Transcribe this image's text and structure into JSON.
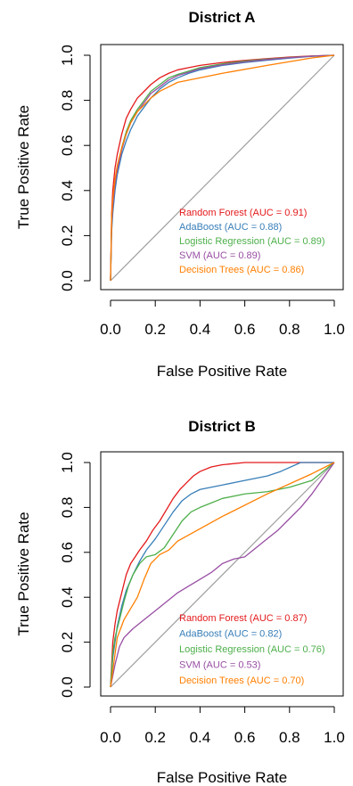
{
  "chart_data": [
    {
      "type": "line",
      "title": "District A",
      "xlabel": "False Positive Rate",
      "ylabel": "True Positive Rate",
      "xlim": [
        0,
        1
      ],
      "ylim": [
        0,
        1
      ],
      "x_ticks": [
        "0.0",
        "0.2",
        "0.4",
        "0.6",
        "0.8",
        "1.0"
      ],
      "y_ticks": [
        "0.0",
        "0.2",
        "0.4",
        "0.6",
        "0.8",
        "1.0"
      ],
      "diagonal_reference": true,
      "legend_position": "bottom-right",
      "series": [
        {
          "name": "Random Forest (AUC = 0.91)",
          "color": "#e41a1c",
          "x": [
            0,
            0.005,
            0.01,
            0.02,
            0.03,
            0.05,
            0.07,
            0.09,
            0.12,
            0.15,
            0.18,
            0.22,
            0.26,
            0.3,
            0.35,
            0.4,
            0.5,
            0.6,
            0.7,
            0.8,
            0.9,
            1.0
          ],
          "y": [
            0,
            0.3,
            0.4,
            0.5,
            0.56,
            0.65,
            0.72,
            0.76,
            0.81,
            0.84,
            0.87,
            0.9,
            0.92,
            0.935,
            0.945,
            0.955,
            0.968,
            0.977,
            0.985,
            0.992,
            0.997,
            1.0
          ]
        },
        {
          "name": "AdaBoost (AUC = 0.88)",
          "color": "#377eb8",
          "x": [
            0,
            0.005,
            0.01,
            0.02,
            0.03,
            0.05,
            0.07,
            0.09,
            0.12,
            0.15,
            0.18,
            0.22,
            0.26,
            0.3,
            0.35,
            0.4,
            0.5,
            0.6,
            0.7,
            0.8,
            0.9,
            1.0
          ],
          "y": [
            0,
            0.22,
            0.3,
            0.4,
            0.47,
            0.56,
            0.62,
            0.67,
            0.73,
            0.77,
            0.81,
            0.85,
            0.88,
            0.9,
            0.92,
            0.935,
            0.955,
            0.968,
            0.978,
            0.987,
            0.995,
            1.0
          ]
        },
        {
          "name": "Logistic Regression (AUC = 0.89)",
          "color": "#4daf4a",
          "x": [
            0,
            0.005,
            0.01,
            0.02,
            0.03,
            0.05,
            0.07,
            0.09,
            0.12,
            0.15,
            0.18,
            0.22,
            0.26,
            0.3,
            0.35,
            0.4,
            0.5,
            0.6,
            0.7,
            0.8,
            0.9,
            1.0
          ],
          "y": [
            0,
            0.26,
            0.34,
            0.44,
            0.5,
            0.59,
            0.66,
            0.71,
            0.76,
            0.8,
            0.84,
            0.87,
            0.9,
            0.915,
            0.93,
            0.945,
            0.962,
            0.974,
            0.983,
            0.99,
            0.996,
            1.0
          ]
        },
        {
          "name": "SVM (AUC = 0.89)",
          "color": "#984ea3",
          "x": [
            0,
            0.005,
            0.01,
            0.02,
            0.03,
            0.05,
            0.07,
            0.09,
            0.12,
            0.15,
            0.18,
            0.22,
            0.26,
            0.3,
            0.35,
            0.4,
            0.5,
            0.6,
            0.7,
            0.8,
            0.9,
            1.0
          ],
          "y": [
            0,
            0.25,
            0.33,
            0.43,
            0.49,
            0.58,
            0.65,
            0.7,
            0.75,
            0.79,
            0.83,
            0.86,
            0.89,
            0.91,
            0.925,
            0.94,
            0.958,
            0.971,
            0.981,
            0.989,
            0.996,
            1.0
          ]
        },
        {
          "name": "Decision Trees (AUC = 0.86)",
          "color": "#ff7f00",
          "x": [
            0,
            0.005,
            0.01,
            0.02,
            0.03,
            0.05,
            0.07,
            0.09,
            0.12,
            0.15,
            0.18,
            0.22,
            0.26,
            0.3,
            0.5,
            0.7,
            0.9,
            1.0
          ],
          "y": [
            0,
            0.28,
            0.36,
            0.45,
            0.51,
            0.59,
            0.65,
            0.7,
            0.75,
            0.78,
            0.81,
            0.84,
            0.86,
            0.88,
            0.92,
            0.955,
            0.988,
            1.0
          ]
        }
      ]
    },
    {
      "type": "line",
      "title": "District B",
      "xlabel": "False Positive Rate",
      "ylabel": "True Positive Rate",
      "xlim": [
        0,
        1
      ],
      "ylim": [
        0,
        1
      ],
      "x_ticks": [
        "0.0",
        "0.2",
        "0.4",
        "0.6",
        "0.8",
        "1.0"
      ],
      "y_ticks": [
        "0.0",
        "0.2",
        "0.4",
        "0.6",
        "0.8",
        "1.0"
      ],
      "diagonal_reference": true,
      "legend_position": "bottom-right",
      "series": [
        {
          "name": "Random Forest (AUC = 0.87)",
          "color": "#e41a1c",
          "x": [
            0,
            0.01,
            0.02,
            0.03,
            0.05,
            0.07,
            0.09,
            0.11,
            0.13,
            0.16,
            0.19,
            0.22,
            0.25,
            0.28,
            0.31,
            0.34,
            0.37,
            0.4,
            0.45,
            0.5,
            0.6,
            0.7,
            0.8,
            0.9,
            1.0
          ],
          "y": [
            0,
            0.2,
            0.28,
            0.34,
            0.42,
            0.5,
            0.55,
            0.58,
            0.61,
            0.65,
            0.7,
            0.74,
            0.79,
            0.84,
            0.88,
            0.91,
            0.94,
            0.96,
            0.98,
            0.99,
            1.0,
            1.0,
            1.0,
            1.0,
            1.0
          ]
        },
        {
          "name": "AdaBoost (AUC = 0.82)",
          "color": "#377eb8",
          "x": [
            0,
            0.01,
            0.02,
            0.03,
            0.05,
            0.07,
            0.1,
            0.13,
            0.16,
            0.2,
            0.24,
            0.28,
            0.32,
            0.36,
            0.4,
            0.45,
            0.5,
            0.6,
            0.7,
            0.76,
            0.85,
            1.0
          ],
          "y": [
            0,
            0.13,
            0.2,
            0.27,
            0.36,
            0.43,
            0.5,
            0.56,
            0.61,
            0.66,
            0.72,
            0.78,
            0.83,
            0.86,
            0.88,
            0.89,
            0.9,
            0.92,
            0.94,
            0.96,
            1.0,
            1.0
          ]
        },
        {
          "name": "Logistic Regression (AUC = 0.76)",
          "color": "#4daf4a",
          "x": [
            0,
            0.01,
            0.02,
            0.04,
            0.06,
            0.08,
            0.1,
            0.13,
            0.16,
            0.2,
            0.24,
            0.28,
            0.32,
            0.36,
            0.4,
            0.45,
            0.5,
            0.6,
            0.7,
            0.8,
            0.9,
            1.0
          ],
          "y": [
            0,
            0.15,
            0.22,
            0.3,
            0.38,
            0.45,
            0.5,
            0.55,
            0.58,
            0.59,
            0.62,
            0.68,
            0.74,
            0.78,
            0.8,
            0.82,
            0.84,
            0.86,
            0.87,
            0.89,
            0.92,
            1.0
          ]
        },
        {
          "name": "SVM (AUC = 0.53)",
          "color": "#984ea3",
          "x": [
            0,
            0.02,
            0.04,
            0.06,
            0.08,
            0.1,
            0.15,
            0.2,
            0.25,
            0.3,
            0.35,
            0.4,
            0.45,
            0.5,
            0.55,
            0.6,
            0.65,
            0.7,
            0.75,
            0.8,
            0.85,
            0.9,
            0.95,
            1.0
          ],
          "y": [
            0,
            0.1,
            0.18,
            0.22,
            0.24,
            0.26,
            0.3,
            0.34,
            0.38,
            0.42,
            0.45,
            0.48,
            0.51,
            0.55,
            0.57,
            0.58,
            0.62,
            0.66,
            0.7,
            0.75,
            0.8,
            0.86,
            0.93,
            1.0
          ]
        },
        {
          "name": "Decision Trees (AUC = 0.70)",
          "color": "#ff7f00",
          "x": [
            0,
            0.03,
            0.06,
            0.09,
            0.12,
            0.15,
            0.18,
            0.22,
            0.26,
            0.3,
            0.5,
            0.7,
            0.9,
            1.0
          ],
          "y": [
            0,
            0.22,
            0.3,
            0.35,
            0.4,
            0.48,
            0.55,
            0.59,
            0.61,
            0.65,
            0.76,
            0.86,
            0.95,
            1.0
          ]
        }
      ]
    }
  ]
}
